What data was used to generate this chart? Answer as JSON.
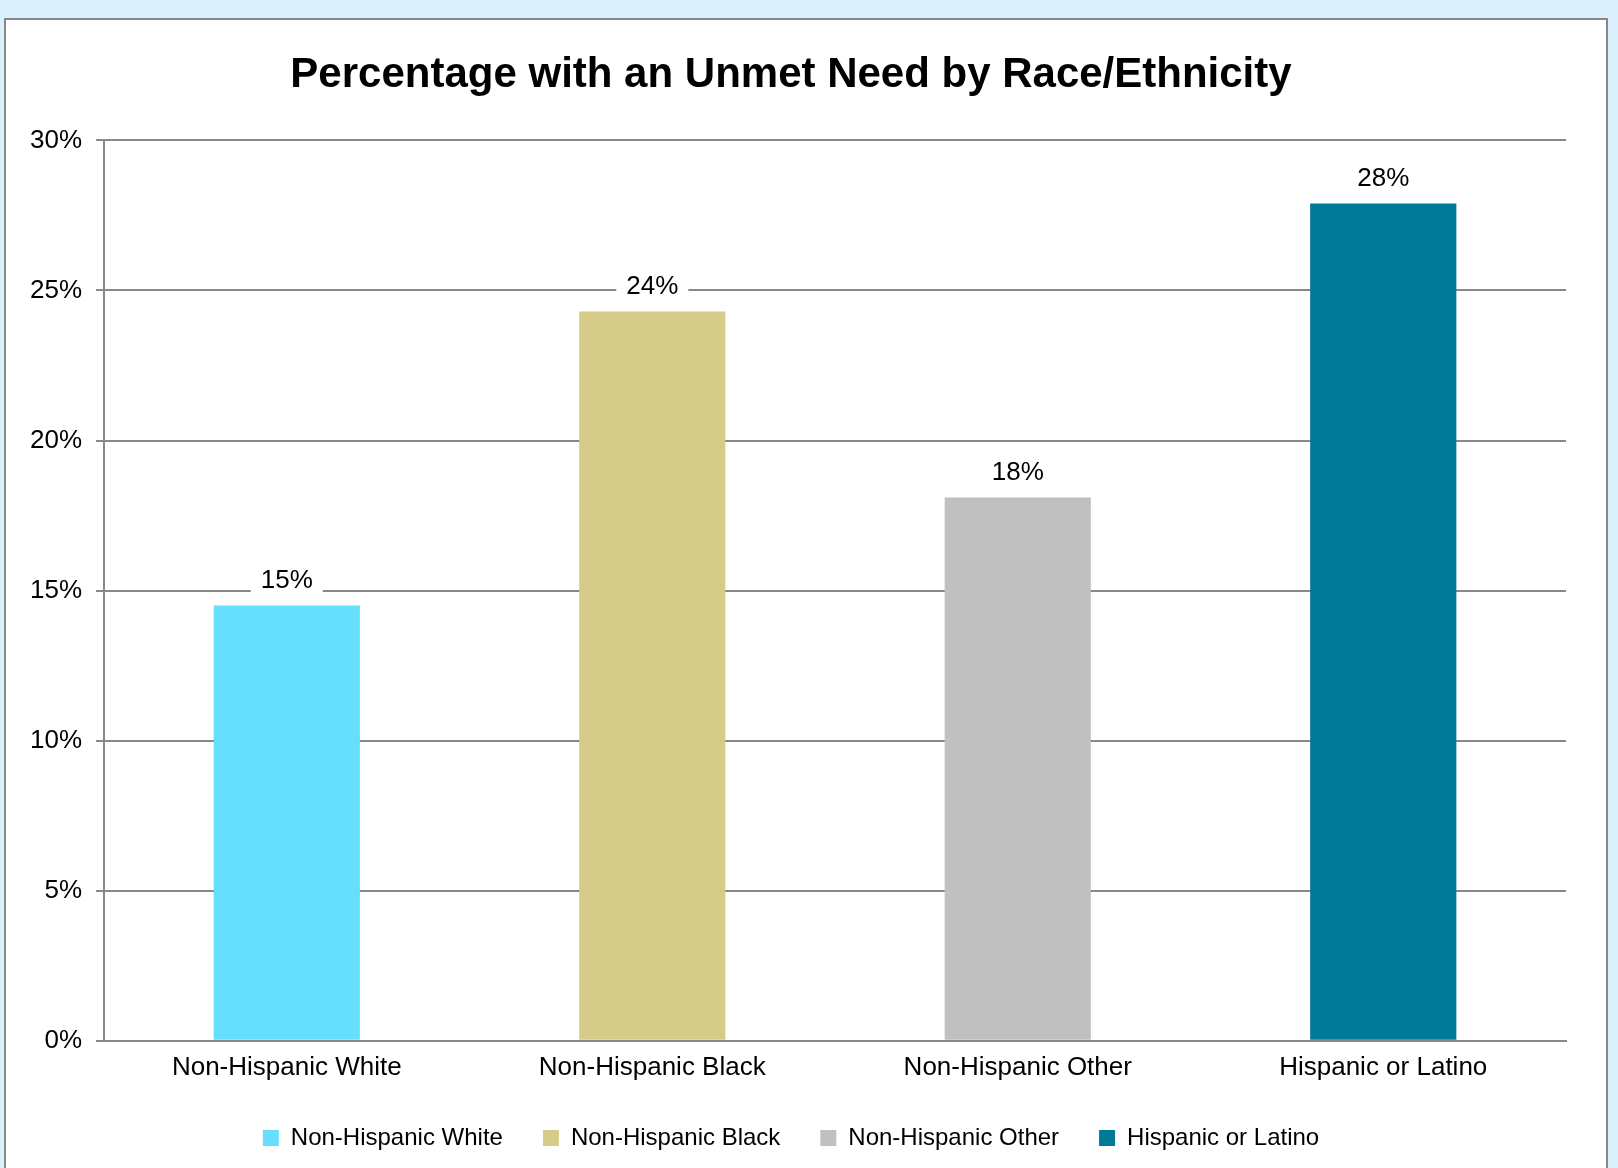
{
  "chart_data": {
    "type": "bar",
    "title": "Percentage with an Unmet Need by Race/Ethnicity",
    "categories": [
      "Non-Hispanic White",
      "Non-Hispanic Black",
      "Non-Hispanic Other",
      "Hispanic or Latino"
    ],
    "series": [
      {
        "name": "Non-Hispanic White",
        "color": "#66dffd",
        "values": [
          14.5,
          null,
          null,
          null
        ],
        "value_labels": [
          "15%",
          null,
          null,
          null
        ]
      },
      {
        "name": "Non-Hispanic Black",
        "color": "#d5cc8a",
        "values": [
          null,
          24.3,
          null,
          null
        ],
        "value_labels": [
          null,
          "24%",
          null,
          null
        ]
      },
      {
        "name": "Non-Hispanic Other",
        "color": "#c0c0c0",
        "values": [
          null,
          null,
          18.1,
          null
        ],
        "value_labels": [
          null,
          null,
          "18%",
          null
        ]
      },
      {
        "name": "Hispanic or Latino",
        "color": "#007a99",
        "values": [
          null,
          null,
          null,
          27.9
        ],
        "value_labels": [
          null,
          null,
          null,
          "28%"
        ]
      }
    ],
    "ylim": [
      0,
      30
    ],
    "yticks": [
      {
        "value": 0,
        "label": "0%"
      },
      {
        "value": 5,
        "label": "5%"
      },
      {
        "value": 10,
        "label": "10%"
      },
      {
        "value": 15,
        "label": "15%"
      },
      {
        "value": 20,
        "label": "20%"
      },
      {
        "value": 25,
        "label": "25%"
      },
      {
        "value": 30,
        "label": "30%"
      }
    ],
    "grid": "y",
    "legend": "bottom"
  }
}
